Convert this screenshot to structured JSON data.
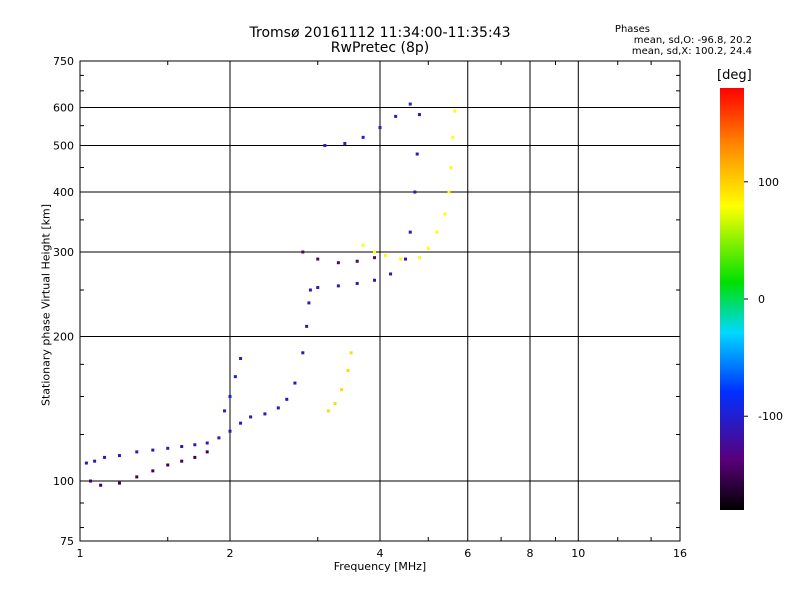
{
  "chart_data": {
    "type": "scatter",
    "title": "Tromsø 20161112 11:34:00-11:35:43",
    "subtitle": "RwPretec (8p)",
    "xlabel": "Frequency [MHz]",
    "ylabel": "Stationary phase Virtual Height [km]",
    "x_scale": "log",
    "y_scale": "log",
    "xlim": [
      1,
      16
    ],
    "ylim": [
      75,
      750
    ],
    "x_ticks": [
      1,
      2,
      4,
      6,
      8,
      10,
      16
    ],
    "x_tick_labels": [
      "1",
      "2",
      "4",
      "6",
      "8",
      "10",
      "16"
    ],
    "y_ticks": [
      75,
      100,
      200,
      300,
      400,
      500,
      600,
      750
    ],
    "y_tick_labels": [
      "75",
      "100",
      "200",
      "300",
      "400",
      "500",
      "600",
      "750"
    ],
    "grid": true,
    "phase_stats": {
      "title": "Phases",
      "o_mode": "mean, sd,O: -96.8, 20.2",
      "x_mode": "mean, sd,X: 100.2, 24.4"
    },
    "colorbar": {
      "label": "[deg]",
      "range": [
        -180,
        180
      ],
      "ticks": [
        100,
        0,
        -100
      ],
      "tick_labels": [
        "100",
        "0",
        "-100"
      ]
    },
    "colors": {
      "grid": "#000000",
      "background": "#ffffff"
    },
    "traces": [
      {
        "mode": "O",
        "phase": -110,
        "points": [
          [
            1.03,
            109
          ],
          [
            1.07,
            110
          ],
          [
            1.12,
            112
          ],
          [
            1.2,
            113
          ],
          [
            1.3,
            115
          ],
          [
            1.4,
            116
          ],
          [
            1.5,
            117
          ],
          [
            1.6,
            118
          ],
          [
            1.7,
            119
          ],
          [
            1.8,
            120
          ],
          [
            1.9,
            123
          ],
          [
            2.0,
            127
          ],
          [
            2.1,
            132
          ],
          [
            2.2,
            136
          ],
          [
            2.35,
            138
          ],
          [
            2.5,
            142
          ],
          [
            2.6,
            148
          ],
          [
            2.7,
            160
          ],
          [
            2.8,
            185
          ],
          [
            2.85,
            210
          ],
          [
            2.88,
            235
          ],
          [
            2.9,
            250
          ],
          [
            3.0,
            253
          ],
          [
            3.3,
            255
          ],
          [
            3.6,
            258
          ],
          [
            3.9,
            262
          ],
          [
            4.2,
            270
          ],
          [
            4.5,
            290
          ],
          [
            4.6,
            330
          ],
          [
            4.7,
            400
          ],
          [
            4.75,
            480
          ],
          [
            4.8,
            580
          ]
        ]
      },
      {
        "mode": "O",
        "phase": -150,
        "points": [
          [
            1.05,
            100
          ],
          [
            1.1,
            98
          ],
          [
            1.2,
            99
          ],
          [
            1.3,
            102
          ],
          [
            1.4,
            105
          ],
          [
            1.5,
            108
          ],
          [
            1.6,
            110
          ],
          [
            1.7,
            112
          ],
          [
            1.8,
            115
          ]
        ]
      },
      {
        "mode": "O",
        "phase": -95,
        "points": [
          [
            1.95,
            140
          ],
          [
            2.0,
            150
          ],
          [
            2.05,
            165
          ],
          [
            2.1,
            180
          ]
        ]
      },
      {
        "mode": "O",
        "phase": -140,
        "points": [
          [
            2.8,
            300
          ],
          [
            3.0,
            290
          ],
          [
            3.3,
            285
          ],
          [
            3.6,
            287
          ],
          [
            3.9,
            292
          ]
        ]
      },
      {
        "mode": "O",
        "phase": -100,
        "points": [
          [
            3.1,
            500
          ],
          [
            3.4,
            505
          ],
          [
            3.7,
            520
          ],
          [
            4.0,
            545
          ],
          [
            4.3,
            575
          ],
          [
            4.6,
            610
          ]
        ]
      },
      {
        "mode": "X",
        "phase": 80,
        "points": [
          [
            3.7,
            310
          ],
          [
            3.9,
            300
          ],
          [
            4.1,
            295
          ],
          [
            4.4,
            290
          ],
          [
            4.8,
            292
          ],
          [
            5.0,
            305
          ],
          [
            5.2,
            330
          ],
          [
            5.4,
            360
          ],
          [
            5.5,
            400
          ],
          [
            5.55,
            450
          ],
          [
            5.6,
            520
          ],
          [
            5.65,
            590
          ]
        ]
      },
      {
        "mode": "X",
        "phase": 95,
        "points": [
          [
            3.15,
            140
          ],
          [
            3.25,
            145
          ],
          [
            3.35,
            155
          ],
          [
            3.45,
            170
          ],
          [
            3.5,
            185
          ]
        ]
      }
    ]
  }
}
